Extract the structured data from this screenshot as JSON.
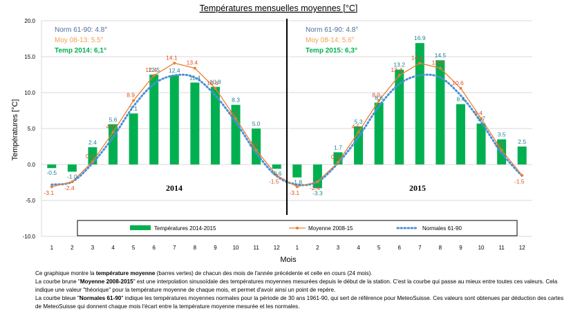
{
  "chart_data": {
    "type": "bar",
    "title": "Températures mensuelles moyennes  [°C]",
    "xlabel": "Mois",
    "ylabel": "Températures [°C]",
    "ylim": [
      -10,
      20
    ],
    "yticks": [
      "20.0",
      "15.0",
      "10.0",
      "5.0",
      "0.0",
      "-5.0",
      "-10.0"
    ],
    "ytick_values": [
      20,
      15,
      10,
      5,
      0,
      -5,
      -10
    ],
    "categories": [
      "1",
      "2",
      "3",
      "4",
      "5",
      "6",
      "7",
      "8",
      "9",
      "10",
      "11",
      "12",
      "1",
      "2",
      "3",
      "4",
      "5",
      "6",
      "7",
      "8",
      "9",
      "10",
      "11",
      "12"
    ],
    "year_labels": [
      "2014",
      "2015"
    ],
    "series": [
      {
        "name": "Températures 2014-2015",
        "color": "#00b050",
        "values": [
          -0.5,
          -1.0,
          2.4,
          5.6,
          7.1,
          12.5,
          12.4,
          11.4,
          10.8,
          8.3,
          5.0,
          -0.6,
          -1.8,
          -3.3,
          1.7,
          5.3,
          8.6,
          13.2,
          16.9,
          14.5,
          8.4,
          5.7,
          3.5,
          2.5
        ],
        "labels": [
          "-0.5",
          "-1.0",
          "2.4",
          "5.6",
          "7.1",
          "12.5",
          "12.4",
          "11.4",
          "10.8",
          "8.3",
          "5.0",
          "-0.6",
          "-1.8",
          "-3.3",
          "1.7",
          "5.3",
          "8.6",
          "13.2",
          "16.9",
          "14.5",
          "8.4",
          "5.7",
          "3.5",
          "2.5"
        ]
      },
      {
        "name": "Moyenne 2008-15",
        "color": "#ed7d31",
        "values": [
          -3.1,
          -2.4,
          0.4,
          4.5,
          8.9,
          12.4,
          14.1,
          13.4,
          10.6,
          6.4,
          2.0,
          -1.5,
          -3.1,
          -2.4,
          0.3,
          4.5,
          8.9,
          12.4,
          14.1,
          13.4,
          10.6,
          6.4,
          2.0,
          -1.5
        ],
        "labels": [
          "-3.1",
          "-2.4",
          "0.4",
          "4.5",
          "8.9",
          "12.4",
          "14.1",
          "13.4",
          "10.6",
          "6.4",
          "2.0",
          "-1.5",
          "-3.1",
          "-2.4",
          "0.3",
          "4.5",
          "8.9",
          "12.4",
          "14.1",
          "13.4",
          "10.6",
          "6.4",
          "2.0",
          "-1.5"
        ]
      },
      {
        "name": "Normales 61-90",
        "color": "#4a90d9",
        "values": [
          -2.8,
          -2.4,
          0.2,
          3.8,
          8.1,
          11.2,
          12.4,
          12.1,
          9.6,
          5.9,
          1.6,
          -1.6,
          -2.8,
          -2.4,
          0.2,
          3.8,
          8.1,
          11.2,
          12.4,
          12.1,
          9.6,
          5.9,
          1.6,
          -1.6
        ]
      }
    ],
    "stats": [
      {
        "norm": "Norm 61-90: 4.8°",
        "moy": "Moy 08-13:  5.5°",
        "temp": "Temp 2014:  6,1°"
      },
      {
        "norm": "Norm 61-90: 4.8°",
        "moy": "Moy 08-14:  5.6°",
        "temp": "Temp 2015:  6,3°"
      }
    ],
    "colors": {
      "norm_text": "#4f6b9a",
      "moy_text": "#f0a050",
      "temp_text": "#00b050",
      "bar_label": "#1f7f8f",
      "line_label": "#e05020"
    },
    "legend_position": "bottom",
    "grid": "horizontal"
  },
  "description": {
    "p1_a": "Ce graphique montre la ",
    "p1_b": "température moyenne",
    "p1_c": " (barres vertes) de chacun des mois de l'année précédente et celle en cours (24 mois).",
    "p2_a": "La courbe brune \"",
    "p2_b": "Moyenne 2008-2015",
    "p2_c": "\" est une interpolation sinusoïdale des  températures moyennes mesurées depuis le début de la station. C'est la courbe qui passe au mieux entre toutes ces valeurs. Cela indique une valeur \"théorique\" pour la température moyenne de chaque mois, et permet d'avoir ainsi un point de repère.",
    "p3_a": "La courbe bleue \"",
    "p3_b": "Normales 61-90",
    "p3_c": "\" indique les  températures moyennes normales pour la période de 30 ans 1961-90, qui sert de référence pour MeteoSuisse. Ces valeurs sont obtenues par déduction des cartes de MeteoSuisse qui donnent chaque mois l'écart entre la température moyenne mesurée et les normales."
  }
}
